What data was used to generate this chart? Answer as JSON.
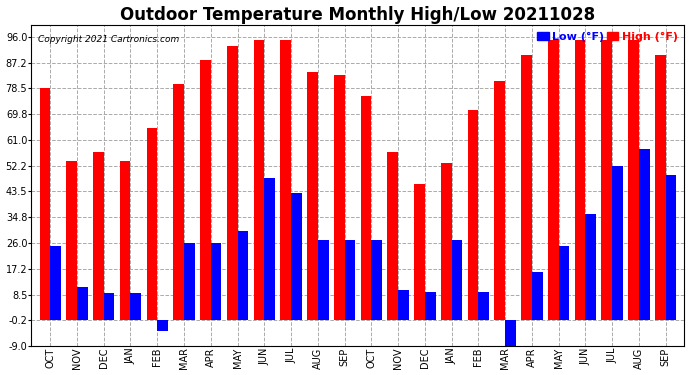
{
  "title": "Outdoor Temperature Monthly High/Low 20211028",
  "copyright": "Copyright 2021 Cartronics.com",
  "legend_low": "Low (°F)",
  "legend_high": "High (°F)",
  "months": [
    "OCT",
    "NOV",
    "DEC",
    "JAN",
    "FEB",
    "MAR",
    "APR",
    "MAY",
    "JUN",
    "JUL",
    "AUG",
    "SEP",
    "OCT",
    "NOV",
    "DEC",
    "JAN",
    "FEB",
    "MAR",
    "APR",
    "MAY",
    "JUN",
    "JUL",
    "AUG",
    "SEP"
  ],
  "high_values": [
    78.5,
    54.0,
    57.0,
    54.0,
    65.0,
    80.0,
    88.0,
    93.0,
    95.0,
    95.0,
    84.0,
    83.0,
    76.0,
    57.0,
    46.0,
    53.0,
    71.0,
    81.0,
    90.0,
    95.0,
    95.0,
    95.0,
    95.0,
    90.0
  ],
  "low_values": [
    25.0,
    11.0,
    9.0,
    9.0,
    -4.0,
    26.0,
    26.0,
    30.0,
    48.0,
    43.0,
    27.0,
    27.0,
    27.0,
    10.0,
    9.5,
    27.0,
    9.5,
    -9.0,
    16.0,
    25.0,
    36.0,
    52.0,
    58.0,
    49.0
  ],
  "ylim": [
    -9.0,
    100.0
  ],
  "yticks": [
    -9.0,
    -0.2,
    8.5,
    17.2,
    26.0,
    34.8,
    43.5,
    52.2,
    61.0,
    69.8,
    78.5,
    87.2,
    96.0
  ],
  "high_color": "#ff0000",
  "low_color": "#0000ff",
  "background_color": "#ffffff",
  "grid_color": "#aaaaaa",
  "title_fontsize": 12,
  "bar_width": 0.4
}
